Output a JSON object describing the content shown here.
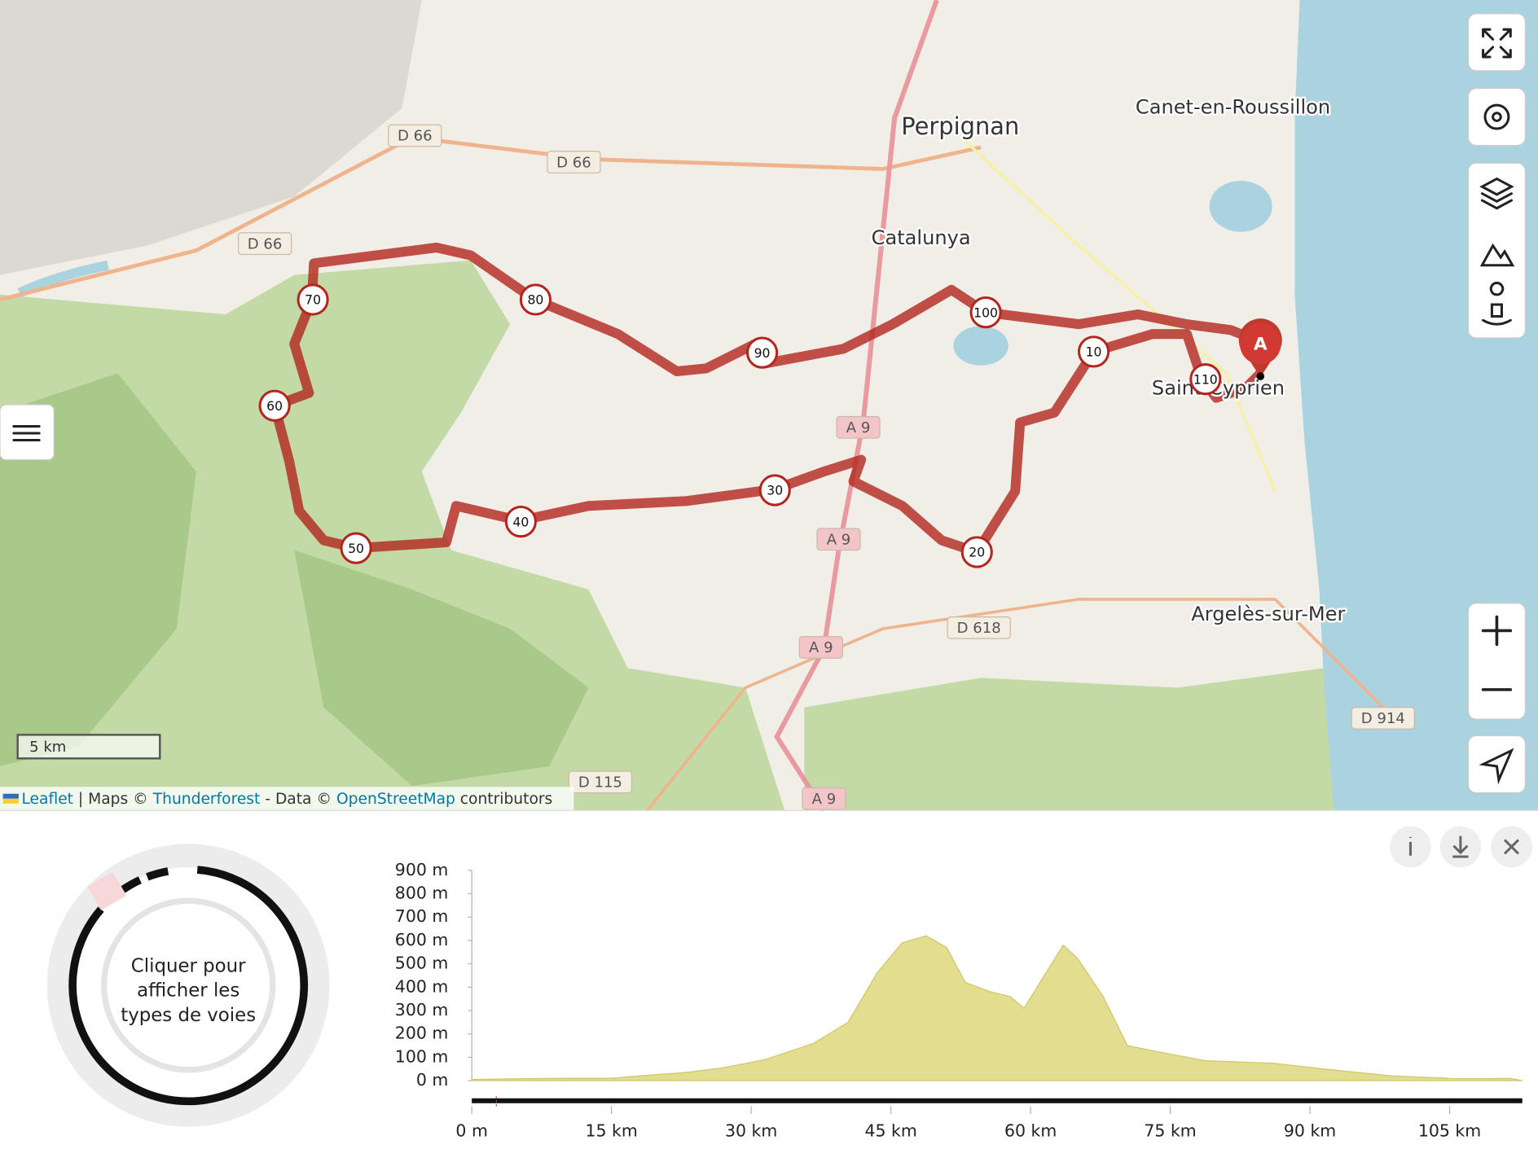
{
  "map": {
    "places": [
      "Perpignan",
      "Canet-en-Roussillon",
      "Catalunya",
      "Saint-Cyprien",
      "Argelès-sur-Mer"
    ],
    "roads": [
      "D 66",
      "D 66",
      "D 66",
      "A 9",
      "A 9",
      "A 9",
      "A 9",
      "D 618",
      "D 914",
      "D 115"
    ],
    "route_markers": [
      "10",
      "20",
      "30",
      "40",
      "50",
      "60",
      "70",
      "80",
      "90",
      "100",
      "110"
    ],
    "start_marker": "A",
    "scale": "5 km",
    "attribution": {
      "leaflet": "Leaflet",
      "maps": " | Maps © ",
      "thunderforest": "Thunderforest",
      "data": " - Data © ",
      "osm": "OpenStreetMap",
      "contributors": " contributors"
    }
  },
  "way_types": {
    "prompt": [
      "Cliquer pour",
      "afficher les",
      "types de voies"
    ]
  },
  "chart_data": {
    "type": "area",
    "x": [
      0,
      5,
      10,
      15,
      18,
      23,
      27,
      31.5,
      36.7,
      40.4,
      43.5,
      46.2,
      48.8,
      51,
      53,
      55.7,
      57.8,
      59.3,
      61,
      63.5,
      65,
      67.8,
      70.4,
      73.5,
      78.8,
      86,
      91.4,
      98.8,
      105,
      109,
      111.4,
      112.8
    ],
    "values": [
      5,
      8,
      10,
      10,
      20,
      35,
      55,
      90,
      160,
      250,
      460,
      590,
      620,
      570,
      420,
      380,
      360,
      310,
      420,
      580,
      525,
      360,
      150,
      125,
      85,
      75,
      50,
      20,
      10,
      8,
      10,
      0
    ],
    "color": "#e3dd8f",
    "xlim": [
      0,
      112.8
    ],
    "ylim": [
      0,
      900
    ],
    "xticks": [
      {
        "value": 0,
        "label": "0 m"
      },
      {
        "value": 15,
        "label": "15 km"
      },
      {
        "value": 30,
        "label": "30 km"
      },
      {
        "value": 45,
        "label": "45 km"
      },
      {
        "value": 60,
        "label": "60 km"
      },
      {
        "value": 75,
        "label": "75 km"
      },
      {
        "value": 90,
        "label": "90 km"
      },
      {
        "value": 105,
        "label": "105 km"
      }
    ],
    "yticks": [
      {
        "value": 0,
        "label": "0 m"
      },
      {
        "value": 100,
        "label": "100 m"
      },
      {
        "value": 200,
        "label": "200 m"
      },
      {
        "value": 300,
        "label": "300 m"
      },
      {
        "value": 400,
        "label": "400 m"
      },
      {
        "value": 500,
        "label": "500 m"
      },
      {
        "value": 600,
        "label": "600 m"
      },
      {
        "value": 700,
        "label": "700 m"
      },
      {
        "value": 800,
        "label": "800 m"
      },
      {
        "value": 900,
        "label": "900 m"
      }
    ]
  }
}
